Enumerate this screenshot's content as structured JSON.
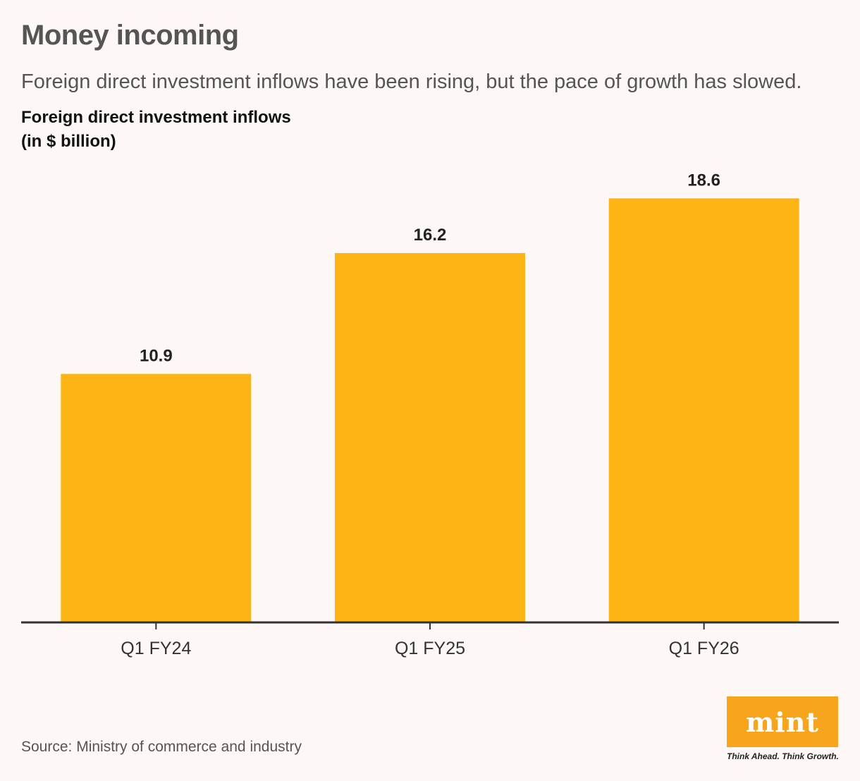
{
  "header": {
    "title": "Money incoming",
    "subtitle": "Foreign direct investment inflows have been rising, but the pace of growth has slowed.",
    "axis_title_line1": "Foreign direct investment inflows",
    "axis_title_line2": "(in $ billion)"
  },
  "chart_data": {
    "type": "bar",
    "title": "Foreign direct investment inflows",
    "ylabel": "(in $ billion)",
    "xlabel": "",
    "categories": [
      "Q1 FY24",
      "Q1 FY25",
      "Q1 FY26"
    ],
    "values": [
      10.9,
      16.2,
      18.6
    ],
    "value_labels": [
      "10.9",
      "16.2",
      "18.6"
    ],
    "ylim": [
      0,
      20
    ],
    "grid": false,
    "bar_color": "#fdb515",
    "axis_color": "#333333"
  },
  "footer": {
    "source": "Source: Ministry of commerce and industry",
    "logo": "mint",
    "tagline": "Think Ahead. Think Growth."
  },
  "colors": {
    "background": "#fdf8f5",
    "logo_bg": "#f7a51c"
  }
}
